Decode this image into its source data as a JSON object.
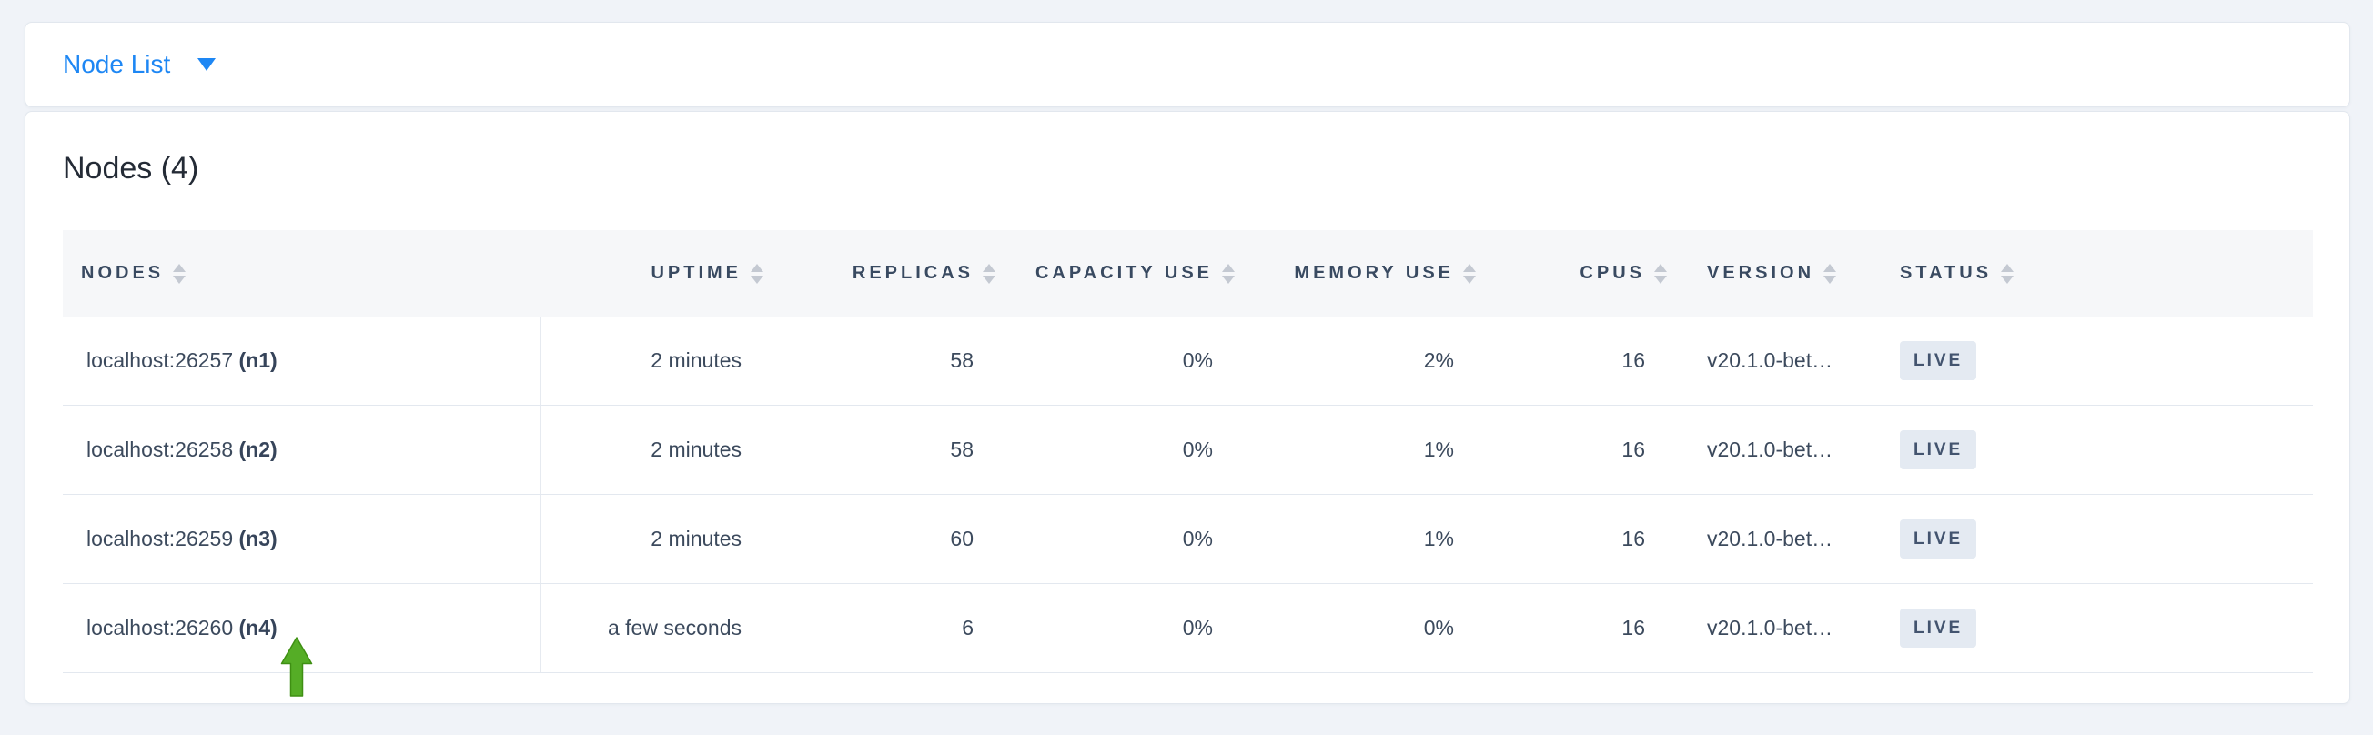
{
  "toolbar": {
    "dropdown_label": "Node List",
    "accent_color": "#1e87f4"
  },
  "panel": {
    "title": "Nodes (4)"
  },
  "table": {
    "columns": [
      {
        "key": "nodes",
        "label": "NODES",
        "align": "left"
      },
      {
        "key": "uptime",
        "label": "UPTIME",
        "align": "right"
      },
      {
        "key": "replicas",
        "label": "REPLICAS",
        "align": "right"
      },
      {
        "key": "capacity_use",
        "label": "CAPACITY USE",
        "align": "right"
      },
      {
        "key": "memory_use",
        "label": "MEMORY USE",
        "align": "right"
      },
      {
        "key": "cpus",
        "label": "CPUS",
        "align": "right"
      },
      {
        "key": "version",
        "label": "VERSION",
        "align": "left"
      },
      {
        "key": "status",
        "label": "STATUS",
        "align": "left"
      }
    ],
    "rows": [
      {
        "address": "localhost:26257",
        "name": "(n1)",
        "uptime": "2 minutes",
        "replicas": "58",
        "capacity_use": "0%",
        "memory_use": "2%",
        "cpus": "16",
        "version": "v20.1.0-bet…",
        "status": "LIVE"
      },
      {
        "address": "localhost:26258",
        "name": "(n2)",
        "uptime": "2 minutes",
        "replicas": "58",
        "capacity_use": "0%",
        "memory_use": "1%",
        "cpus": "16",
        "version": "v20.1.0-bet…",
        "status": "LIVE"
      },
      {
        "address": "localhost:26259",
        "name": "(n3)",
        "uptime": "2 minutes",
        "replicas": "60",
        "capacity_use": "0%",
        "memory_use": "1%",
        "cpus": "16",
        "version": "v20.1.0-bet…",
        "status": "LIVE"
      },
      {
        "address": "localhost:26260",
        "name": "(n4)",
        "uptime": "a few seconds",
        "replicas": "6",
        "capacity_use": "0%",
        "memory_use": "0%",
        "cpus": "16",
        "version": "v20.1.0-bet…",
        "status": "LIVE"
      }
    ],
    "status_badge": {
      "bg": "#e4eaf2",
      "text_color": "#43546f"
    }
  },
  "annotation": {
    "arrow_color": "#55ad26",
    "points_at": "localhost:26260 (n4)"
  }
}
